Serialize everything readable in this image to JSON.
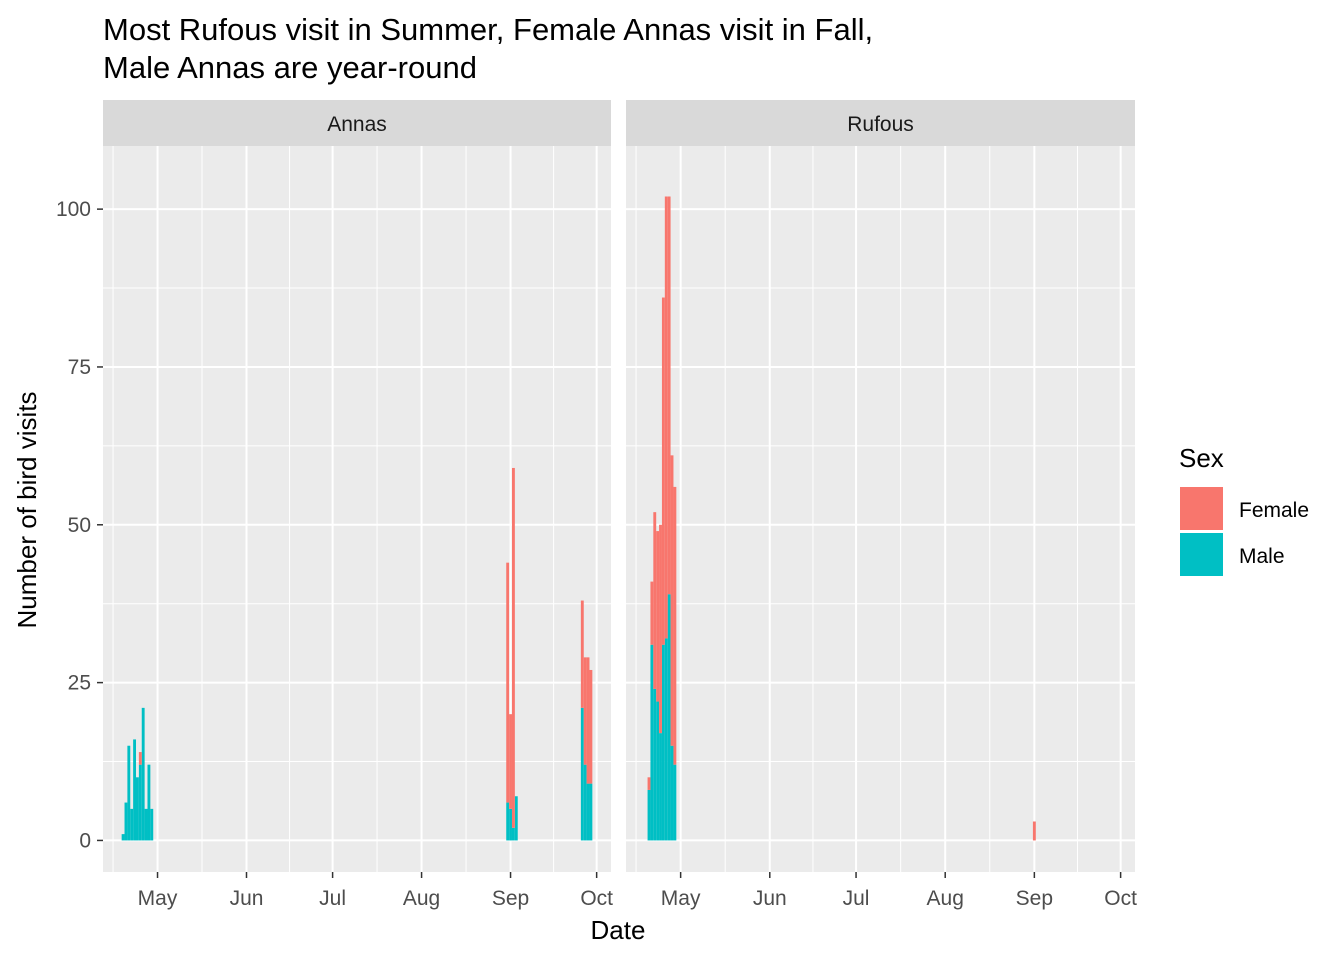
{
  "chart_data": {
    "type": "bar",
    "stacked": true,
    "title_lines": [
      "Most Rufous visit in Summer, Female Annas visit in Fall,",
      "Male Annas are year-round"
    ],
    "xlabel": "Date",
    "ylabel": "Number of bird visits",
    "ylim": [
      -5,
      110
    ],
    "y_ticks": [
      0,
      25,
      50,
      75,
      100
    ],
    "x_range": [
      "2018-04-12",
      "2018-10-06"
    ],
    "x_ticks": [
      {
        "date": "2018-05-01",
        "label": "May"
      },
      {
        "date": "2018-06-01",
        "label": "Jun"
      },
      {
        "date": "2018-07-01",
        "label": "Jul"
      },
      {
        "date": "2018-08-01",
        "label": "Aug"
      },
      {
        "date": "2018-09-01",
        "label": "Sep"
      },
      {
        "date": "2018-10-01",
        "label": "Oct"
      }
    ],
    "grid": true,
    "legend": {
      "title": "Sex",
      "position": "right",
      "entries": [
        {
          "name": "Female",
          "color": "#F8766D"
        },
        {
          "name": "Male",
          "color": "#00BFC4"
        }
      ]
    },
    "panels": [
      {
        "name": "Annas",
        "series": [
          {
            "name": "Male",
            "points": [
              {
                "date": "2018-04-19",
                "value": 1
              },
              {
                "date": "2018-04-20",
                "value": 6
              },
              {
                "date": "2018-04-21",
                "value": 15
              },
              {
                "date": "2018-04-22",
                "value": 5
              },
              {
                "date": "2018-04-23",
                "value": 16
              },
              {
                "date": "2018-04-24",
                "value": 10
              },
              {
                "date": "2018-04-25",
                "value": 12
              },
              {
                "date": "2018-04-26",
                "value": 21
              },
              {
                "date": "2018-04-27",
                "value": 5
              },
              {
                "date": "2018-04-28",
                "value": 12
              },
              {
                "date": "2018-04-29",
                "value": 5
              },
              {
                "date": "2018-08-31",
                "value": 6
              },
              {
                "date": "2018-09-01",
                "value": 5
              },
              {
                "date": "2018-09-02",
                "value": 2
              },
              {
                "date": "2018-09-03",
                "value": 7
              },
              {
                "date": "2018-09-26",
                "value": 21
              },
              {
                "date": "2018-09-27",
                "value": 12
              },
              {
                "date": "2018-09-28",
                "value": 9
              },
              {
                "date": "2018-09-29",
                "value": 9
              }
            ]
          },
          {
            "name": "Female",
            "points": [
              {
                "date": "2018-04-25",
                "value": 2
              },
              {
                "date": "2018-08-31",
                "value": 38
              },
              {
                "date": "2018-09-01",
                "value": 15
              },
              {
                "date": "2018-09-02",
                "value": 57
              },
              {
                "date": "2018-09-26",
                "value": 17
              },
              {
                "date": "2018-09-27",
                "value": 17
              },
              {
                "date": "2018-09-28",
                "value": 20
              },
              {
                "date": "2018-09-29",
                "value": 18
              }
            ]
          }
        ]
      },
      {
        "name": "Rufous",
        "series": [
          {
            "name": "Male",
            "points": [
              {
                "date": "2018-04-20",
                "value": 8
              },
              {
                "date": "2018-04-21",
                "value": 31
              },
              {
                "date": "2018-04-22",
                "value": 24
              },
              {
                "date": "2018-04-23",
                "value": 22
              },
              {
                "date": "2018-04-24",
                "value": 17
              },
              {
                "date": "2018-04-25",
                "value": 31
              },
              {
                "date": "2018-04-26",
                "value": 32
              },
              {
                "date": "2018-04-27",
                "value": 39
              },
              {
                "date": "2018-04-28",
                "value": 15
              },
              {
                "date": "2018-04-29",
                "value": 12
              }
            ]
          },
          {
            "name": "Female",
            "points": [
              {
                "date": "2018-04-20",
                "value": 2
              },
              {
                "date": "2018-04-21",
                "value": 10
              },
              {
                "date": "2018-04-22",
                "value": 28
              },
              {
                "date": "2018-04-23",
                "value": 27
              },
              {
                "date": "2018-04-24",
                "value": 33
              },
              {
                "date": "2018-04-25",
                "value": 55
              },
              {
                "date": "2018-04-26",
                "value": 70
              },
              {
                "date": "2018-04-27",
                "value": 63
              },
              {
                "date": "2018-04-28",
                "value": 46
              },
              {
                "date": "2018-04-29",
                "value": 44
              },
              {
                "date": "2018-09-01",
                "value": 3
              }
            ]
          }
        ]
      }
    ]
  }
}
